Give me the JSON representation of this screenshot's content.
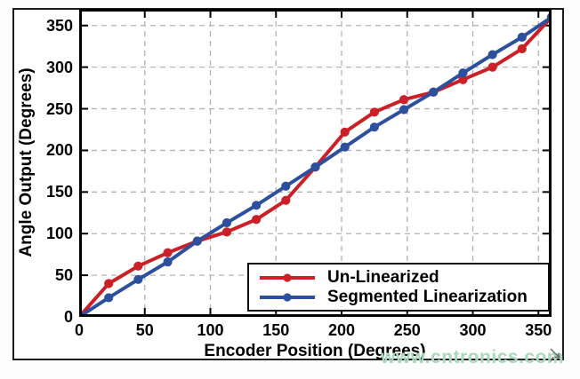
{
  "watermark": {
    "text": "www.cntronics.com",
    "color": "#a7d9ba"
  },
  "colors": {
    "frame": "#000000",
    "grid": "#b3b3b3",
    "figure_border": "#1d1d1d",
    "text": "#000000"
  },
  "chart_data": {
    "type": "line",
    "title": "",
    "xlabel": "Encoder Position (Degrees)",
    "ylabel": "Angle Output (Degrees)",
    "xlim": [
      0,
      360
    ],
    "ylim": [
      0,
      370
    ],
    "xticks": [
      0,
      50,
      100,
      150,
      200,
      250,
      300,
      350
    ],
    "yticks": [
      0,
      50,
      100,
      150,
      200,
      250,
      300,
      350
    ],
    "grid": "dashed",
    "legend_position": "inside-lower-right",
    "x": [
      0,
      22.5,
      45,
      67.5,
      90,
      112.5,
      135,
      157.5,
      180,
      202.5,
      225,
      247.5,
      270,
      292.5,
      315,
      337.5,
      360
    ],
    "series": [
      {
        "name": "Un-Linearized",
        "color": "#cb2027",
        "marker": "circle",
        "values": [
          0,
          40,
          61,
          77,
          91,
          102,
          117,
          140,
          180,
          222,
          246,
          261,
          270,
          285,
          300,
          322,
          360
        ]
      },
      {
        "name": "Segmented Linearization",
        "color": "#2c4f9e",
        "marker": "circle",
        "values": [
          0,
          23,
          45,
          66,
          91,
          113,
          134,
          157,
          180,
          204,
          228,
          249,
          270,
          293,
          315,
          336,
          360
        ]
      }
    ]
  }
}
